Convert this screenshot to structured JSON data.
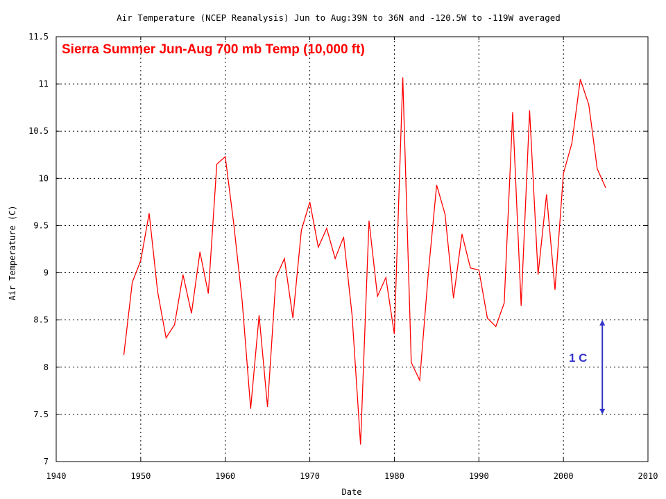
{
  "chart_data": {
    "type": "line",
    "title": "Air Temperature (NCEP Reanalysis) Jun to Aug:39N to 36N and -120.5W to -119W averaged",
    "xlabel": "Date",
    "ylabel": "Air Temperature (C)",
    "xlim": [
      1940,
      2010
    ],
    "ylim": [
      7,
      11.5
    ],
    "x_ticks": [
      "1940",
      "1950",
      "1960",
      "1970",
      "1980",
      "1990",
      "2000",
      "2010"
    ],
    "y_ticks": [
      "7",
      "7.5",
      "8",
      "8.5",
      "9",
      "9.5",
      "10",
      "10.5",
      "11",
      "11.5"
    ],
    "grid": true,
    "series_color": "#ff0000",
    "x": [
      1948,
      1949,
      1950,
      1951,
      1952,
      1953,
      1954,
      1955,
      1956,
      1957,
      1958,
      1959,
      1960,
      1961,
      1962,
      1963,
      1964,
      1965,
      1966,
      1967,
      1968,
      1969,
      1970,
      1971,
      1972,
      1973,
      1974,
      1975,
      1976,
      1977,
      1978,
      1979,
      1980,
      1981,
      1982,
      1983,
      1984,
      1985,
      1986,
      1987,
      1988,
      1989,
      1990,
      1991,
      1992,
      1993,
      1994,
      1995,
      1996,
      1997,
      1998,
      1999,
      2000,
      2001,
      2002,
      2003,
      2004,
      2005
    ],
    "y": [
      8.13,
      8.9,
      9.13,
      9.63,
      8.8,
      8.31,
      8.45,
      8.98,
      8.57,
      9.22,
      8.78,
      10.15,
      10.23,
      9.52,
      8.7,
      7.56,
      8.55,
      7.58,
      8.95,
      9.15,
      8.52,
      9.45,
      9.75,
      9.27,
      9.47,
      9.15,
      9.38,
      8.55,
      7.18,
      9.55,
      8.75,
      8.95,
      8.35,
      11.07,
      8.05,
      7.86,
      8.98,
      9.93,
      9.62,
      8.73,
      9.41,
      9.05,
      9.03,
      8.52,
      8.43,
      8.68,
      10.7,
      8.65,
      10.72,
      8.98,
      9.83,
      8.82,
      10.05,
      10.37,
      11.05,
      10.78,
      10.1,
      9.9
    ],
    "annotations": {
      "title_label": "Sierra  Summer Jun-Aug  700 mb Temp  (10,000 ft)",
      "title_color": "#ff0000",
      "scale_label": "1 C",
      "scale_color": "#3333cc",
      "scale_from": 7.5,
      "scale_to": 8.5,
      "scale_x": 2004.6
    }
  }
}
